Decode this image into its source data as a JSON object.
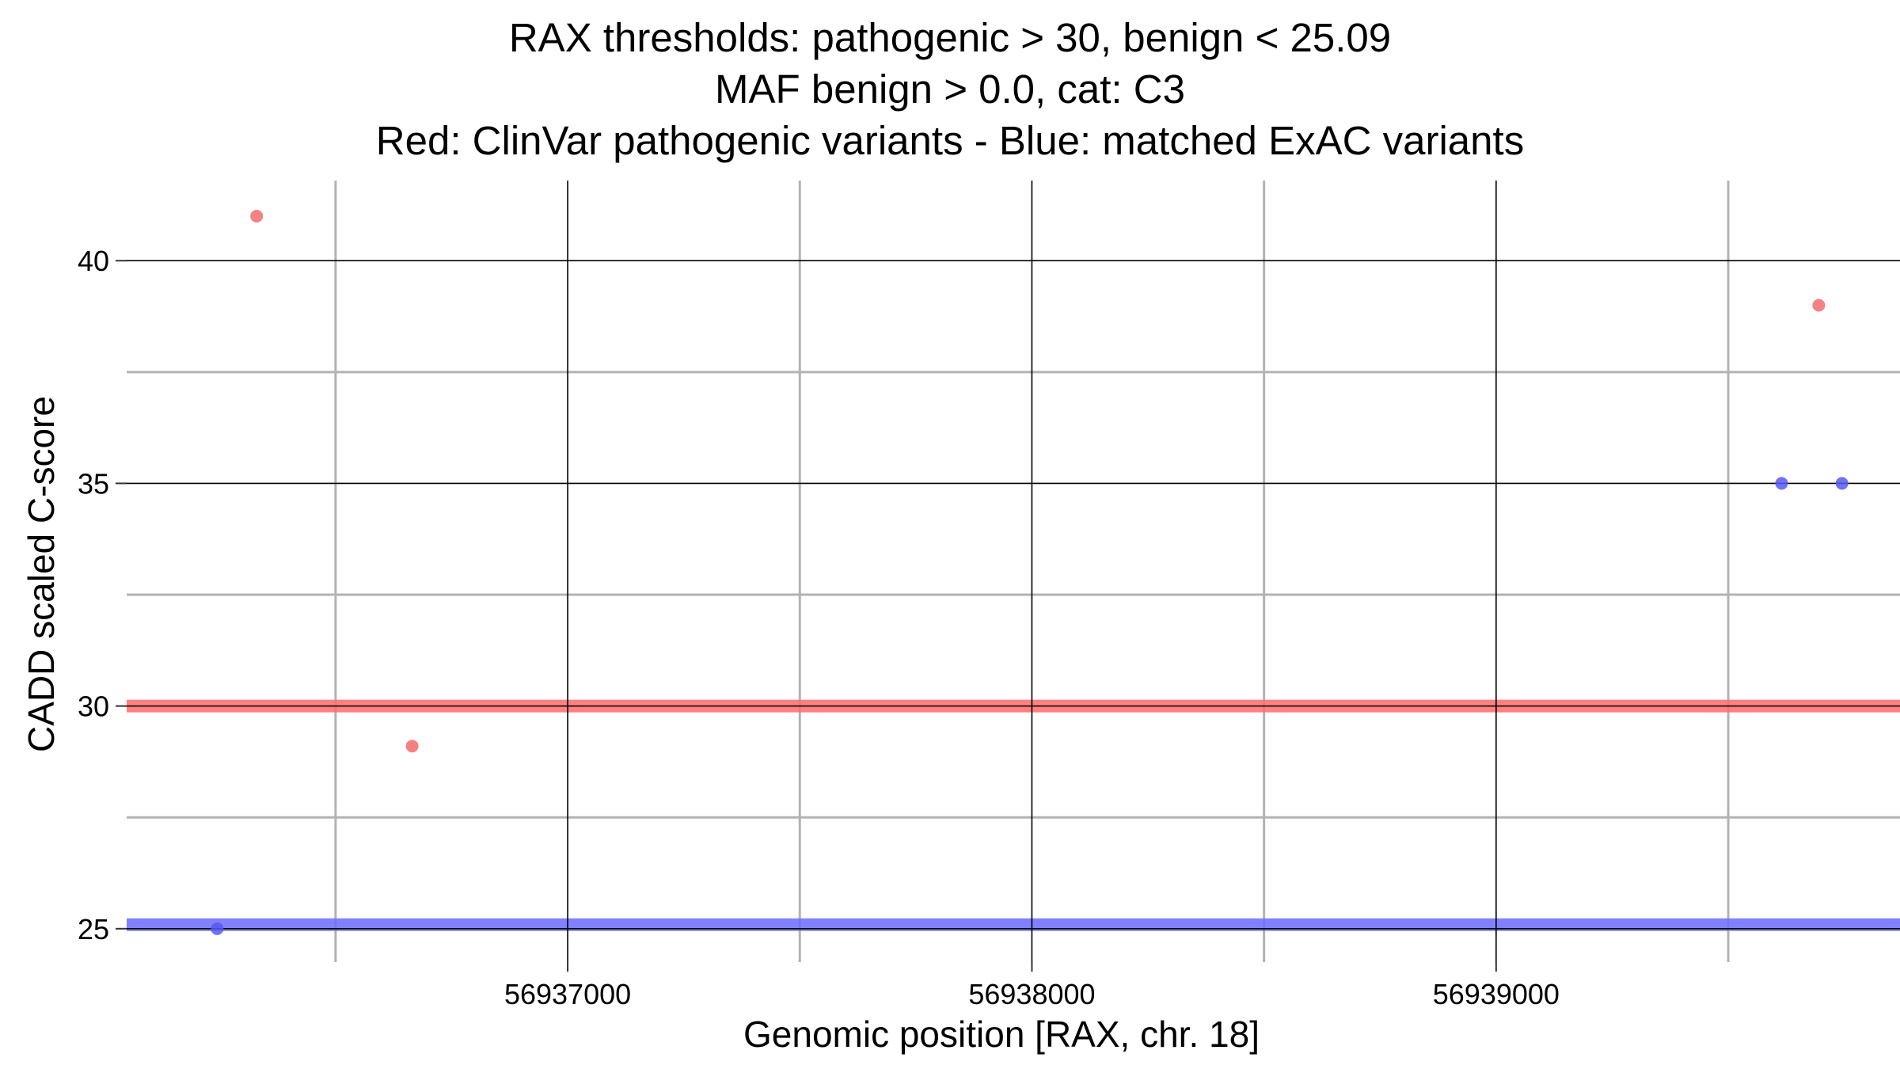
{
  "chart_data": {
    "type": "scatter",
    "title_lines": [
      "RAX thresholds: pathogenic > 30, benign < 25.09",
      "MAF benign > 0.0, cat: C3",
      "Red: ClinVar pathogenic variants - Blue: matched ExAC variants"
    ],
    "xlabel": "Genomic position [RAX, chr. 18]",
    "ylabel": "CADD scaled C-score",
    "xlim": [
      56936050,
      56939870
    ],
    "ylim": [
      24.25,
      41.8
    ],
    "x_ticks": [
      56937000,
      56938000,
      56939000
    ],
    "x_tick_labels": [
      "56937000",
      "56938000",
      "56939000"
    ],
    "x_minor_grid": [
      56936500,
      56937500,
      56938500,
      56939500
    ],
    "y_ticks": [
      25,
      30,
      35,
      40
    ],
    "y_tick_labels": [
      "25",
      "30",
      "35",
      "40"
    ],
    "y_minor_grid": [
      27.5,
      32.5,
      37.5
    ],
    "grid": true,
    "thresholds": [
      {
        "value": 30,
        "color": "#ff6b6b"
      },
      {
        "value": 25.09,
        "color": "#6b6bff"
      }
    ],
    "series": [
      {
        "color": "#f26b70",
        "points": [
          [
            56936330,
            41
          ],
          [
            56936665,
            29.1
          ],
          [
            56939695,
            39
          ]
        ]
      },
      {
        "color": "#5858f0",
        "points": [
          [
            56936245,
            25
          ],
          [
            56939615,
            35
          ],
          [
            56939745,
            35
          ]
        ]
      }
    ]
  }
}
